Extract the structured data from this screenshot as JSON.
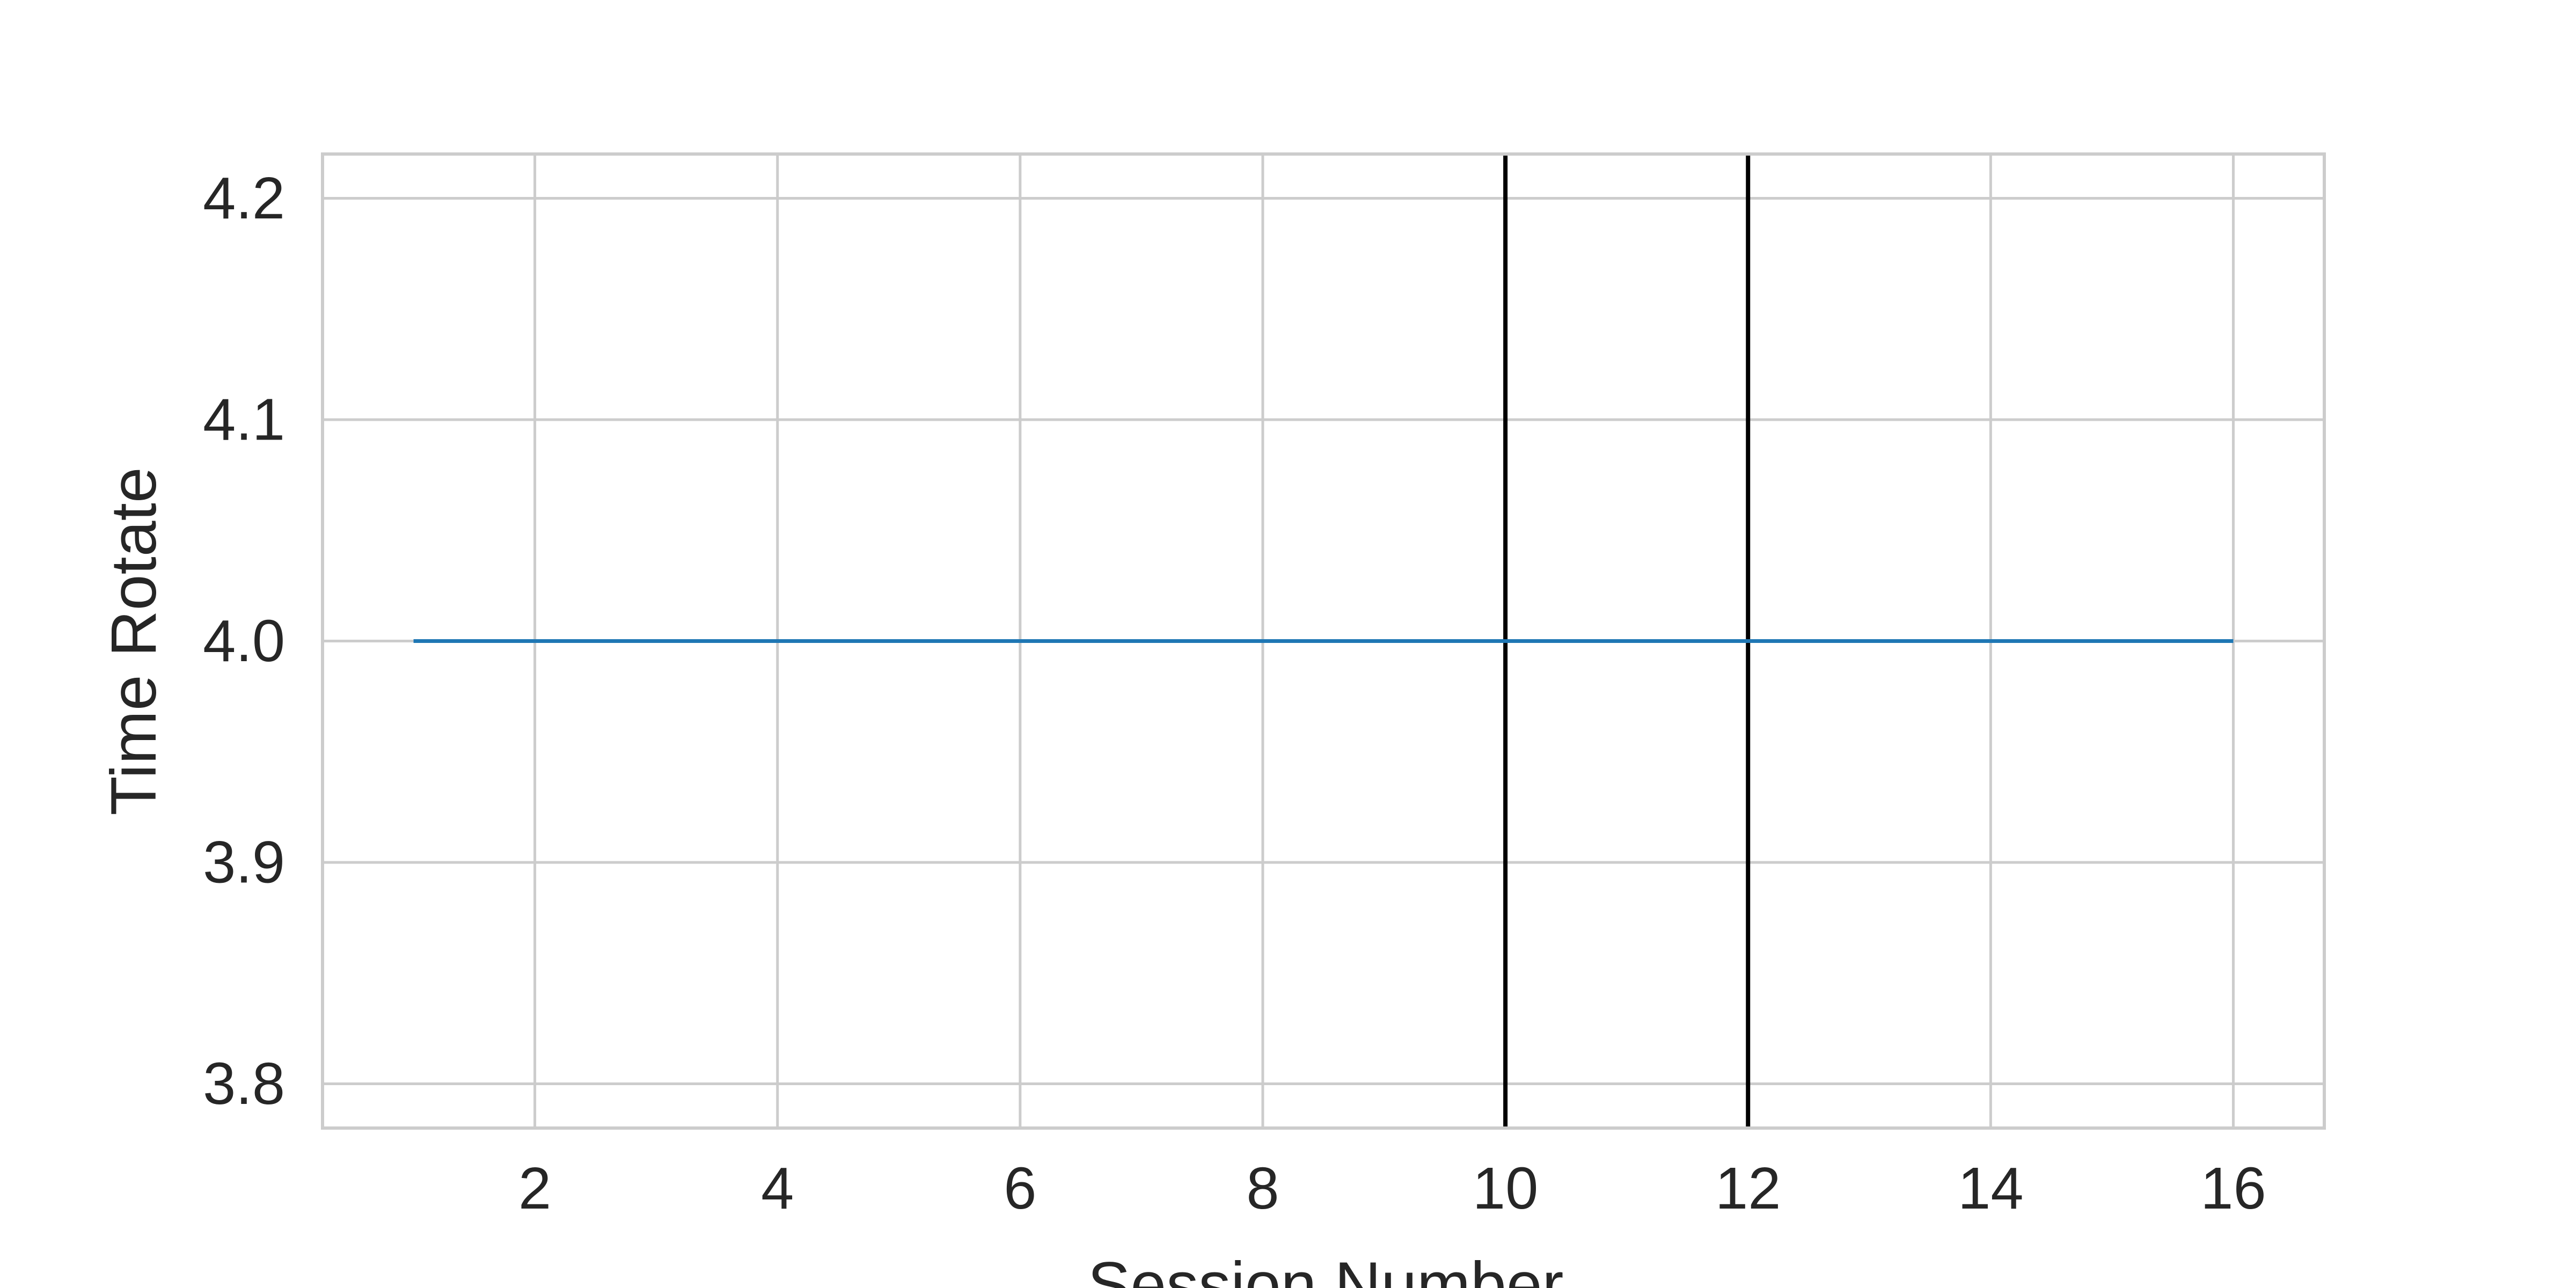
{
  "chart_data": {
    "type": "line",
    "title": "",
    "xlabel": "Session Number",
    "ylabel": "Time Rotate",
    "xlim": [
      0.25,
      16.75
    ],
    "ylim": [
      3.78,
      4.22
    ],
    "x_ticks": [
      2,
      4,
      6,
      8,
      10,
      12,
      14,
      16
    ],
    "y_ticks": [
      3.8,
      3.9,
      4.0,
      4.1,
      4.2
    ],
    "x_tick_labels": [
      "2",
      "4",
      "6",
      "8",
      "10",
      "12",
      "14",
      "16"
    ],
    "y_tick_labels": [
      "3.8",
      "3.9",
      "4.0",
      "4.1",
      "4.2"
    ],
    "grid": true,
    "series": [
      {
        "color": "#1f77b4",
        "x": [
          1,
          2,
          3,
          4,
          5,
          6,
          7,
          8,
          9,
          10,
          11,
          12,
          13,
          14,
          15,
          16
        ],
        "values": [
          4.0,
          4.0,
          4.0,
          4.0,
          4.0,
          4.0,
          4.0,
          4.0,
          4.0,
          4.0,
          4.0,
          4.0,
          4.0,
          4.0,
          4.0,
          4.0
        ]
      }
    ],
    "vertical_lines": [
      {
        "x": 10,
        "color": "#000000"
      },
      {
        "x": 12,
        "color": "#000000"
      }
    ],
    "colors": {
      "grid": "#cccccc",
      "spine": "#cccccc",
      "text": "#262626"
    }
  }
}
